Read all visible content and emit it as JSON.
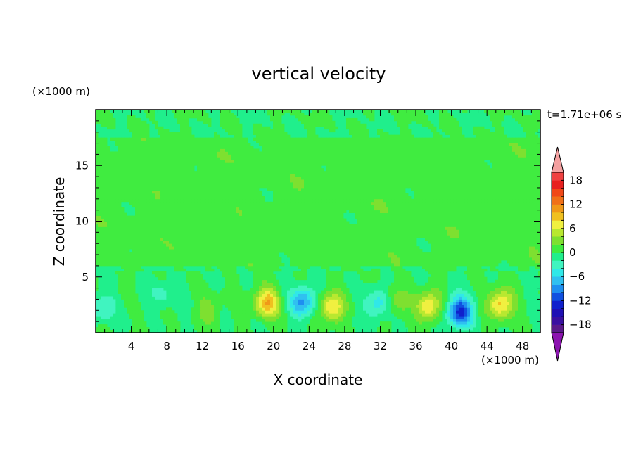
{
  "chart_data": {
    "type": "heatmap",
    "title": "vertical velocity",
    "xlabel": "X coordinate",
    "ylabel": "Z coordinate",
    "x_unit": "(×1000 m)",
    "y_unit": "(×1000 m)",
    "time_label": "t=1.71e+06 s",
    "xlim": [
      0,
      50
    ],
    "ylim": [
      0,
      20
    ],
    "x_ticks": [
      4,
      8,
      12,
      16,
      20,
      24,
      28,
      32,
      36,
      40,
      44,
      48
    ],
    "y_ticks": [
      5,
      10,
      15
    ],
    "colorbar": {
      "min": -20,
      "max": 20,
      "step": 2,
      "tick_labels": [
        -18,
        -12,
        -6,
        0,
        6,
        12,
        18
      ],
      "extend": "both",
      "colors": [
        "#5a1a8a",
        "#3a10a0",
        "#1f10b4",
        "#1020cc",
        "#1050e0",
        "#1e8ff0",
        "#30c0f0",
        "#30e8e8",
        "#40f4c0",
        "#20ef8c",
        "#40ec40",
        "#7ee030",
        "#b8e830",
        "#f0f040",
        "#f0c020",
        "#f09818",
        "#f07018",
        "#f04818",
        "#e82020",
        "#f04040"
      ],
      "under_color": "#8c14b0",
      "over_color": "#f4a0a0"
    },
    "features": [
      {
        "x": 19.3,
        "z": 2.7,
        "peak": 10
      },
      {
        "x": 26.5,
        "z": 2.3,
        "peak": 8
      },
      {
        "x": 37.5,
        "z": 2.4,
        "peak": 8
      },
      {
        "x": 45.5,
        "z": 2.6,
        "peak": 9
      },
      {
        "x": 12.8,
        "z": 2.0,
        "peak": 3
      },
      {
        "x": 33.8,
        "z": 2.8,
        "peak": 4
      },
      {
        "x": 23.2,
        "z": 2.8,
        "peak": -9
      },
      {
        "x": 41.0,
        "z": 1.9,
        "peak": -13
      },
      {
        "x": 31.8,
        "z": 2.6,
        "peak": -6
      },
      {
        "x": 0.8,
        "z": 2.2,
        "peak": -4
      },
      {
        "x": 7.5,
        "z": 3.5,
        "peak": -3
      }
    ]
  }
}
